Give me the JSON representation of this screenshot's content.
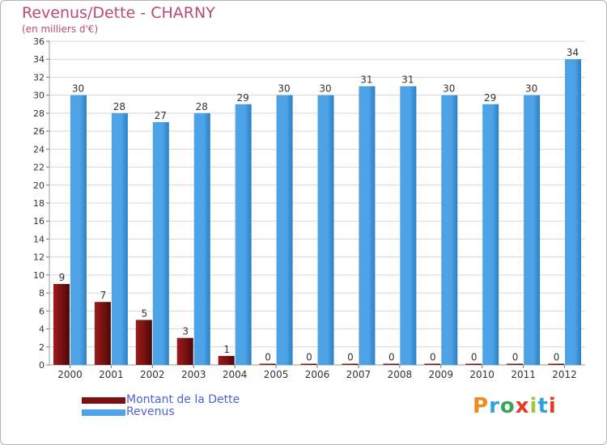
{
  "title": "Revenus/Dette - CHARNY",
  "subtitle": "(en milliers d'€)",
  "legend": [
    {
      "label": "Montant de la Dette",
      "color": "#7a1212"
    },
    {
      "label": "Revenus",
      "color": "#4ea3e6"
    }
  ],
  "logo": {
    "text": "Proxiti",
    "colors": [
      "#f08a1c",
      "#2fa3dc",
      "#3aa55a",
      "#e53a2a",
      "#9aca3c",
      "#2fa3dc",
      "#e53a2a"
    ]
  },
  "colors": {
    "debt": "#7a1212",
    "revenue": "#4ea3e6",
    "revenue_edge": "#2b7fc4",
    "grid": "#d7d7d7",
    "axis_text": "#333333"
  },
  "chart_data": {
    "type": "bar",
    "categories": [
      "2000",
      "2001",
      "2002",
      "2003",
      "2004",
      "2005",
      "2006",
      "2007",
      "2008",
      "2009",
      "2010",
      "2011",
      "2012"
    ],
    "series": [
      {
        "name": "Montant de la Dette",
        "values": [
          9,
          7,
          5,
          3,
          1,
          0,
          0,
          0,
          0,
          0,
          0,
          0,
          0
        ]
      },
      {
        "name": "Revenus",
        "values": [
          30,
          28,
          27,
          28,
          29,
          30,
          30,
          31,
          31,
          30,
          29,
          30,
          34
        ]
      }
    ],
    "title": "Revenus/Dette - CHARNY",
    "subtitle": "(en milliers d'€)",
    "ylim": [
      0,
      36
    ],
    "yticks": [
      0,
      2,
      4,
      6,
      8,
      10,
      12,
      14,
      16,
      18,
      20,
      22,
      24,
      26,
      28,
      30,
      32,
      34,
      36
    ],
    "grid": true,
    "legend_position": "bottom-left"
  }
}
